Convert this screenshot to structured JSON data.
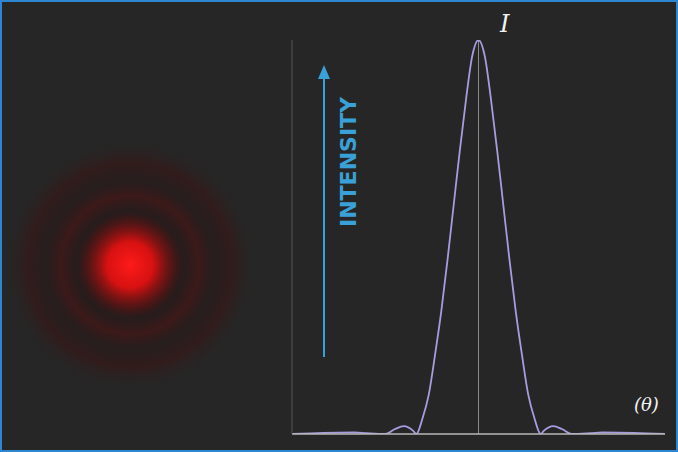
{
  "chart_data": {
    "type": "line",
    "x_label": "(θ)",
    "y_label": "INTENSITY",
    "annotations": [
      "I"
    ],
    "x": [
      -3,
      -2.5,
      -2,
      -1.8,
      -1.5,
      -1.35,
      -1.2,
      -1.05,
      -1,
      -0.9,
      -0.8,
      -0.7,
      -0.6,
      -0.5,
      -0.4,
      -0.3,
      -0.2,
      -0.1,
      0,
      0.1,
      0.2,
      0.3,
      0.4,
      0.5,
      0.6,
      0.7,
      0.8,
      0.9,
      1,
      1.05,
      1.2,
      1.35,
      1.5,
      1.8,
      2,
      2.5,
      3
    ],
    "values": [
      0,
      0.003,
      0.004,
      0.002,
      0,
      0.012,
      0.02,
      0.008,
      0,
      0.04,
      0.1,
      0.2,
      0.31,
      0.44,
      0.58,
      0.72,
      0.85,
      0.96,
      1,
      0.96,
      0.85,
      0.72,
      0.58,
      0.44,
      0.31,
      0.2,
      0.1,
      0.04,
      0,
      0.008,
      0.02,
      0.012,
      0,
      0.002,
      0.004,
      0.003,
      0
    ],
    "color": "#a89be0",
    "xlim": [
      -3,
      3
    ],
    "ylim": [
      0,
      1
    ],
    "tick_labels": false,
    "grid": false
  }
}
